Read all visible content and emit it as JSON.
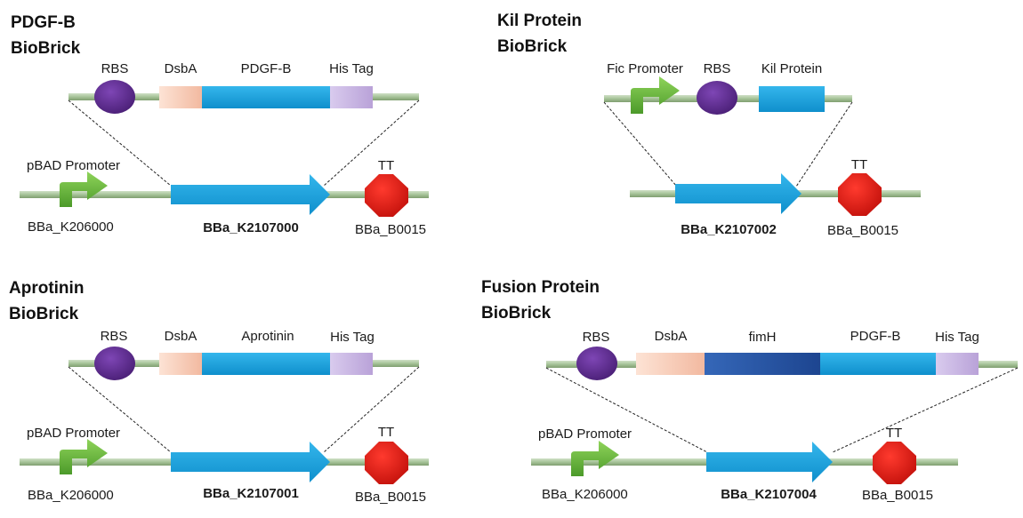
{
  "colors": {
    "backbone": "#a6c398",
    "rbs": "#5b2b8c",
    "dsba": "#f6c8b2",
    "cds": "#1aa2dc",
    "his_tag": "#cab7e3",
    "fimh": "#2d5aa8",
    "promoter": "#6db33f",
    "terminator": "#e3211c"
  },
  "panels": [
    {
      "id": "pdgfb",
      "title_line1": "PDGF-B",
      "title_line2": "BioBrick",
      "insert_parts": [
        "RBS",
        "DsbA",
        "PDGF-B",
        "His Tag"
      ],
      "promoter_label": "pBAD Promoter",
      "promoter_id": "BBa_K206000",
      "device_id": "BBa_K2107000",
      "terminator_label": "TT",
      "terminator_id": "BBa_B0015"
    },
    {
      "id": "kil",
      "title_line1": "Kil Protein",
      "title_line2": "BioBrick",
      "insert_parts": [
        "Fic Promoter",
        "RBS",
        "Kil Protein"
      ],
      "device_id": "BBa_K2107002",
      "terminator_label": "TT",
      "terminator_id": "BBa_B0015"
    },
    {
      "id": "aprotinin",
      "title_line1": "Aprotinin",
      "title_line2": "BioBrick",
      "insert_parts": [
        "RBS",
        "DsbA",
        "Aprotinin",
        "His Tag"
      ],
      "promoter_label": "pBAD Promoter",
      "promoter_id": "BBa_K206000",
      "device_id": "BBa_K2107001",
      "terminator_label": "TT",
      "terminator_id": "BBa_B0015"
    },
    {
      "id": "fusion",
      "title_line1": "Fusion Protein",
      "title_line2": "BioBrick",
      "insert_parts": [
        "RBS",
        "DsbA",
        "fimH",
        "PDGF-B",
        "His Tag"
      ],
      "promoter_label": "pBAD Promoter",
      "promoter_id": "BBa_K206000",
      "device_id": "BBa_K2107004",
      "terminator_label": "TT",
      "terminator_id": "BBa_B0015"
    }
  ]
}
